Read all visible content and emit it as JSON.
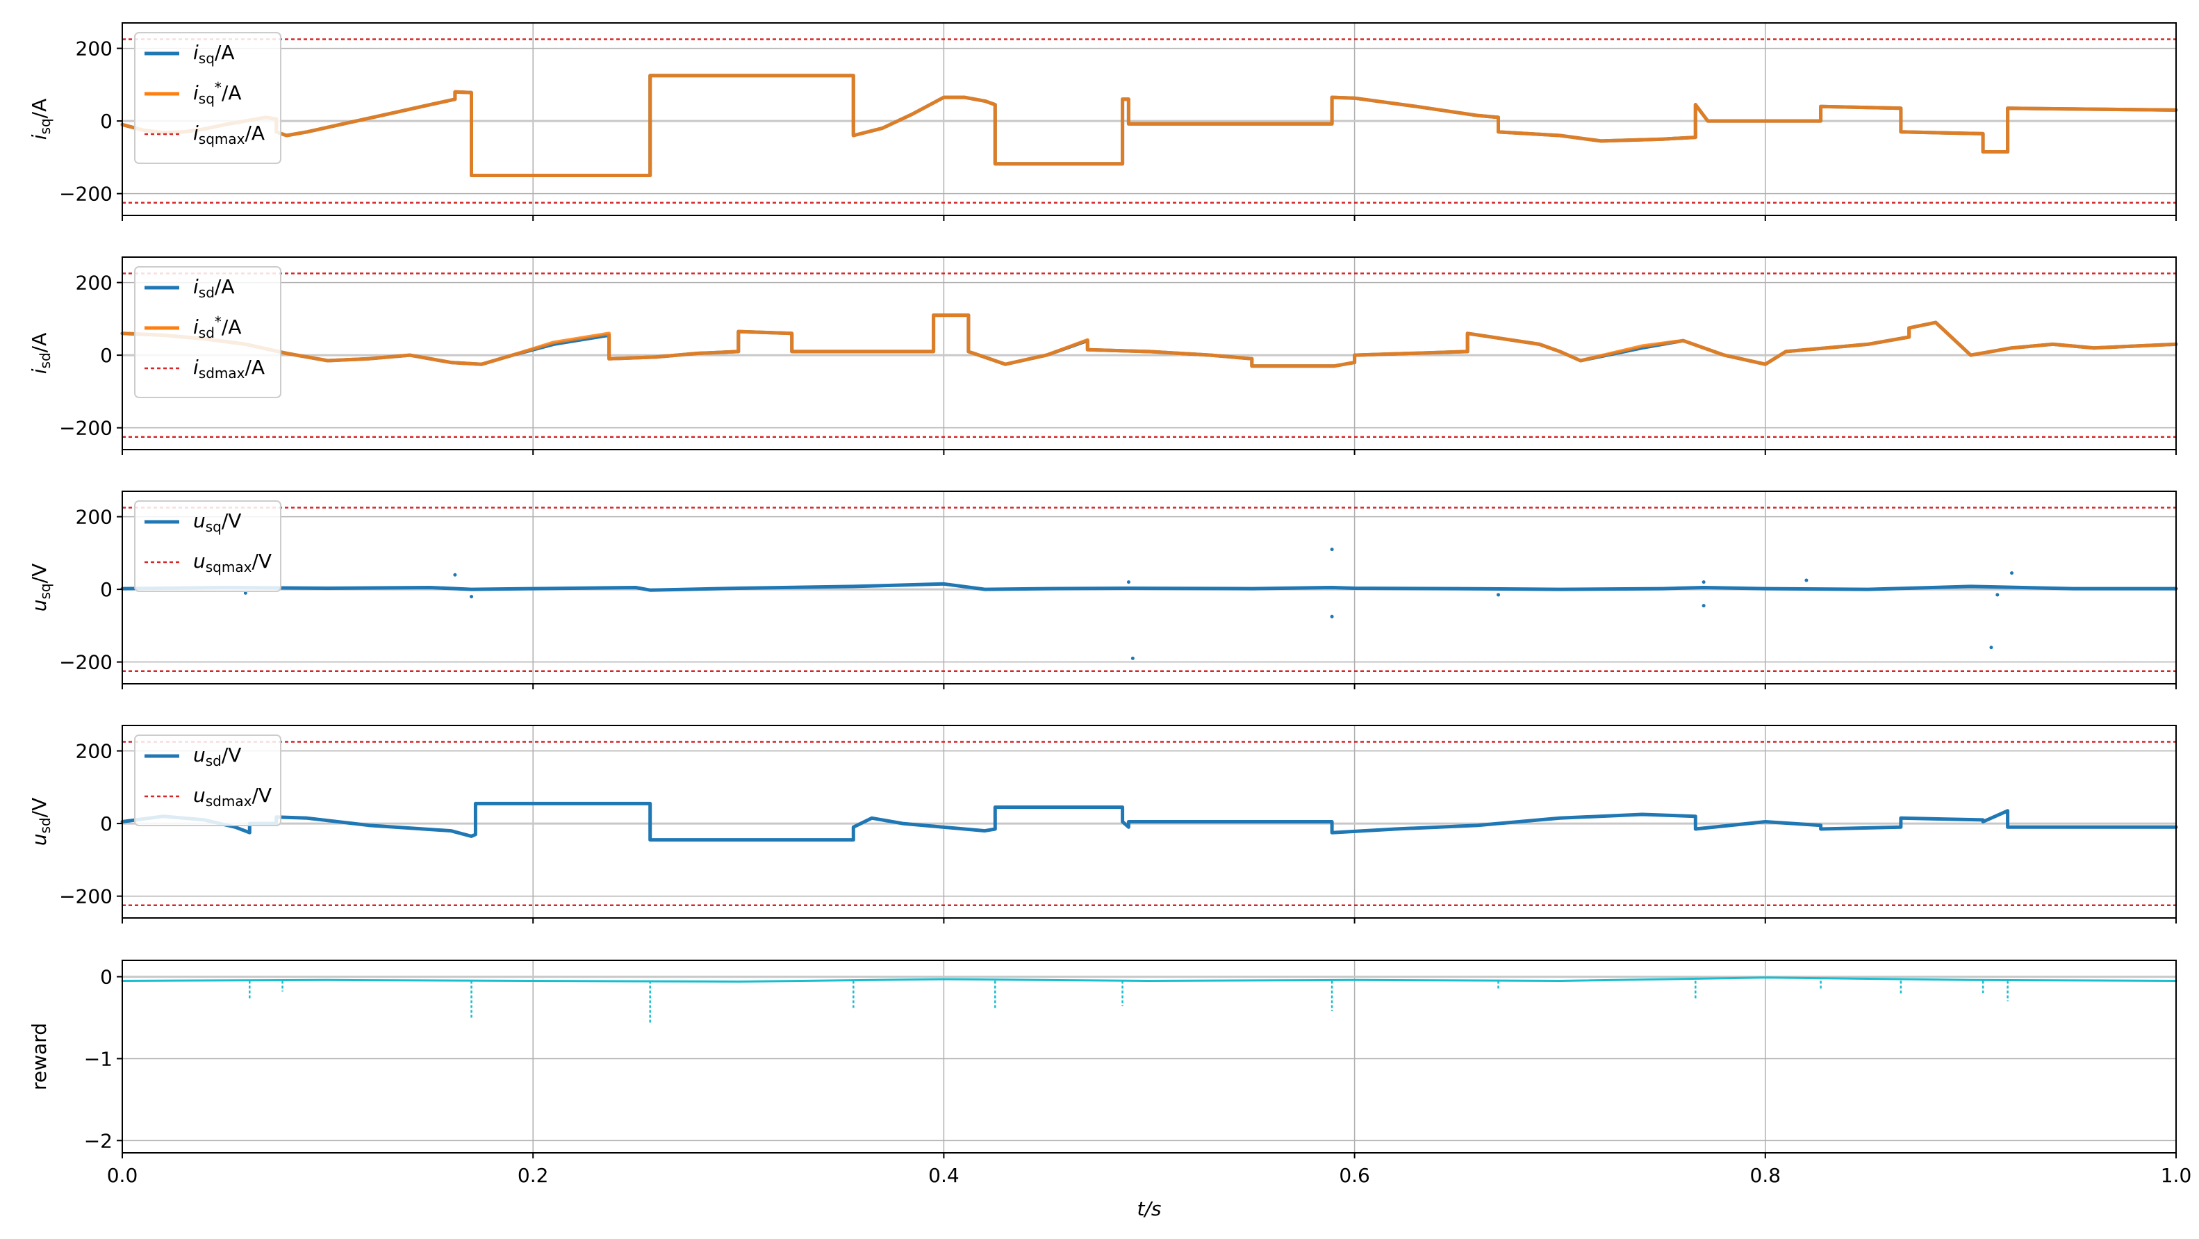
{
  "colors": {
    "series_blue": "#1f77b4",
    "series_orange": "#ff7f0e",
    "limit_red": "#d62728",
    "reward_cyan": "#17becf",
    "grid": "#b0b0b0",
    "zero_line": "#c8c8c8"
  },
  "x_axis": {
    "label": "t/s",
    "range": [
      0,
      1
    ],
    "ticks": [
      0.0,
      0.2,
      0.4,
      0.6,
      0.8,
      1.0
    ],
    "tick_labels": [
      "0.0",
      "0.2",
      "0.4",
      "0.6",
      "0.8",
      "1.0"
    ]
  },
  "chart_data": [
    {
      "type": "line",
      "ylabel_main": "i",
      "ylabel_sub": "sq",
      "ylabel_unit": "/A",
      "ylim": [
        -260,
        270
      ],
      "yticks": [
        200,
        0,
        -200
      ],
      "ytick_labels": [
        "200",
        "0",
        "−200"
      ],
      "grid": true,
      "legend_position": "top-left",
      "legend": [
        {
          "main": "i",
          "sub": "sq",
          "sup": "",
          "unit": "/A",
          "style": "solid",
          "color": "#1f77b4"
        },
        {
          "main": "i",
          "sub": "sq",
          "sup": "*",
          "unit": "/A",
          "style": "solid",
          "color": "#ff7f0e"
        },
        {
          "main": "i",
          "sub": "sqmax",
          "sup": "",
          "unit": "/A",
          "style": "dashed",
          "color": "#d62728"
        }
      ],
      "limits": [
        225,
        -225
      ],
      "series": [
        {
          "name": "isq",
          "color": "#1f77b4",
          "t": [
            0,
            0.01,
            0.02,
            0.03,
            0.04,
            0.05,
            0.06,
            0.07,
            0.075,
            0.075,
            0.08,
            0.09,
            0.11,
            0.13,
            0.15,
            0.162,
            0.162,
            0.17,
            0.17,
            0.257,
            0.257,
            0.356,
            0.356,
            0.37,
            0.385,
            0.4,
            0.41,
            0.42,
            0.425,
            0.425,
            0.487,
            0.487,
            0.49,
            0.49,
            0.589,
            0.589,
            0.6,
            0.63,
            0.66,
            0.67,
            0.67,
            0.7,
            0.72,
            0.75,
            0.766,
            0.766,
            0.772,
            0.772,
            0.827,
            0.827,
            0.866,
            0.866,
            0.906,
            0.906,
            0.918,
            0.918,
            1.0
          ],
          "values": [
            -10,
            -25,
            -32,
            -30,
            -22,
            -10,
            0,
            10,
            5,
            -30,
            -40,
            -30,
            -5,
            20,
            45,
            60,
            80,
            78,
            -150,
            -150,
            125,
            125,
            -40,
            -20,
            20,
            65,
            65,
            55,
            45,
            -118,
            -118,
            60,
            60,
            -8,
            -8,
            65,
            63,
            40,
            15,
            10,
            -30,
            -40,
            -55,
            -50,
            -45,
            45,
            0,
            0,
            0,
            40,
            35,
            -30,
            -35,
            -85,
            -85,
            35,
            30
          ]
        },
        {
          "name": "isq*",
          "color": "#ff7f0e",
          "t": [
            0,
            0.01,
            0.02,
            0.03,
            0.04,
            0.05,
            0.06,
            0.07,
            0.075,
            0.075,
            0.08,
            0.09,
            0.11,
            0.13,
            0.15,
            0.162,
            0.162,
            0.17,
            0.17,
            0.257,
            0.257,
            0.356,
            0.356,
            0.37,
            0.385,
            0.4,
            0.41,
            0.42,
            0.425,
            0.425,
            0.487,
            0.487,
            0.49,
            0.49,
            0.589,
            0.589,
            0.6,
            0.63,
            0.66,
            0.67,
            0.67,
            0.7,
            0.72,
            0.75,
            0.766,
            0.766,
            0.772,
            0.772,
            0.827,
            0.827,
            0.866,
            0.866,
            0.906,
            0.906,
            0.918,
            0.918,
            1.0
          ],
          "values": [
            -10,
            -25,
            -32,
            -30,
            -22,
            -10,
            0,
            10,
            5,
            -30,
            -40,
            -30,
            -5,
            20,
            45,
            60,
            80,
            78,
            -150,
            -150,
            125,
            125,
            -40,
            -20,
            20,
            65,
            65,
            55,
            45,
            -118,
            -118,
            60,
            60,
            -8,
            -8,
            65,
            63,
            40,
            15,
            10,
            -30,
            -40,
            -55,
            -50,
            -45,
            45,
            0,
            0,
            0,
            40,
            35,
            -30,
            -35,
            -85,
            -85,
            35,
            30
          ]
        }
      ]
    },
    {
      "type": "line",
      "ylabel_main": "i",
      "ylabel_sub": "sd",
      "ylabel_unit": "/A",
      "ylim": [
        -260,
        270
      ],
      "yticks": [
        200,
        0,
        -200
      ],
      "ytick_labels": [
        "200",
        "0",
        "−200"
      ],
      "grid": true,
      "legend_position": "top-left",
      "legend": [
        {
          "main": "i",
          "sub": "sd",
          "sup": "",
          "unit": "/A",
          "style": "solid",
          "color": "#1f77b4"
        },
        {
          "main": "i",
          "sub": "sd",
          "sup": "*",
          "unit": "/A",
          "style": "solid",
          "color": "#ff7f0e"
        },
        {
          "main": "i",
          "sub": "sdmax",
          "sup": "",
          "unit": "/A",
          "style": "dashed",
          "color": "#d62728"
        }
      ],
      "limits": [
        225,
        -225
      ],
      "series": [
        {
          "name": "isd",
          "color": "#1f77b4",
          "t": [
            0,
            0.02,
            0.04,
            0.06,
            0.08,
            0.1,
            0.12,
            0.14,
            0.16,
            0.175,
            0.19,
            0.21,
            0.237,
            0.237,
            0.26,
            0.28,
            0.3,
            0.3,
            0.326,
            0.326,
            0.395,
            0.395,
            0.412,
            0.412,
            0.43,
            0.45,
            0.47,
            0.47,
            0.5,
            0.53,
            0.55,
            0.55,
            0.59,
            0.6,
            0.6,
            0.655,
            0.655,
            0.69,
            0.7,
            0.71,
            0.74,
            0.76,
            0.78,
            0.8,
            0.81,
            0.81,
            0.85,
            0.87,
            0.87,
            0.883,
            0.9,
            0.92,
            0.94,
            0.96,
            0.98,
            1.0
          ],
          "values": [
            60,
            55,
            45,
            30,
            5,
            -15,
            -10,
            0,
            -20,
            -25,
            0,
            30,
            55,
            -10,
            -5,
            5,
            10,
            65,
            60,
            10,
            10,
            110,
            110,
            10,
            -25,
            0,
            40,
            15,
            10,
            0,
            -10,
            -30,
            -30,
            -20,
            0,
            10,
            60,
            30,
            10,
            -15,
            20,
            40,
            0,
            -25,
            10,
            10,
            30,
            50,
            75,
            90,
            0,
            20,
            30,
            20,
            25,
            30
          ]
        },
        {
          "name": "isd*",
          "color": "#ff7f0e",
          "t": [
            0,
            0.02,
            0.04,
            0.06,
            0.08,
            0.1,
            0.12,
            0.14,
            0.16,
            0.175,
            0.19,
            0.21,
            0.237,
            0.237,
            0.26,
            0.28,
            0.3,
            0.3,
            0.326,
            0.326,
            0.395,
            0.395,
            0.412,
            0.412,
            0.43,
            0.45,
            0.47,
            0.47,
            0.5,
            0.53,
            0.55,
            0.55,
            0.59,
            0.6,
            0.6,
            0.655,
            0.655,
            0.69,
            0.7,
            0.71,
            0.74,
            0.76,
            0.78,
            0.8,
            0.81,
            0.81,
            0.85,
            0.87,
            0.87,
            0.883,
            0.9,
            0.92,
            0.94,
            0.96,
            0.98,
            1.0
          ],
          "values": [
            60,
            55,
            45,
            30,
            5,
            -15,
            -10,
            0,
            -20,
            -25,
            0,
            35,
            60,
            -10,
            -5,
            5,
            10,
            65,
            60,
            10,
            10,
            110,
            110,
            10,
            -25,
            0,
            42,
            15,
            10,
            0,
            -10,
            -30,
            -30,
            -20,
            0,
            10,
            60,
            30,
            10,
            -15,
            25,
            40,
            0,
            -25,
            10,
            10,
            30,
            50,
            75,
            90,
            0,
            20,
            30,
            20,
            25,
            30
          ]
        }
      ]
    },
    {
      "type": "line",
      "ylabel_main": "u",
      "ylabel_sub": "sq",
      "ylabel_unit": "/V",
      "ylim": [
        -260,
        270
      ],
      "yticks": [
        200,
        0,
        -200
      ],
      "ytick_labels": [
        "200",
        "0",
        "−200"
      ],
      "grid": true,
      "legend_position": "top-left",
      "legend": [
        {
          "main": "u",
          "sub": "sq",
          "sup": "",
          "unit": "/V",
          "style": "solid",
          "color": "#1f77b4"
        },
        {
          "main": "u",
          "sub": "sqmax",
          "sup": "",
          "unit": "/V",
          "style": "dashed",
          "color": "#d62728"
        }
      ],
      "limits": [
        225,
        -225
      ],
      "series": [
        {
          "name": "usq",
          "color": "#1f77b4",
          "t": [
            0,
            0.05,
            0.1,
            0.15,
            0.17,
            0.2,
            0.25,
            0.257,
            0.3,
            0.356,
            0.4,
            0.42,
            0.45,
            0.49,
            0.55,
            0.589,
            0.6,
            0.65,
            0.7,
            0.75,
            0.77,
            0.8,
            0.85,
            0.9,
            0.95,
            1.0
          ],
          "values": [
            2,
            5,
            3,
            5,
            0,
            2,
            5,
            -2,
            3,
            8,
            15,
            0,
            2,
            3,
            2,
            5,
            3,
            2,
            0,
            2,
            5,
            2,
            0,
            8,
            2,
            2
          ]
        }
      ],
      "outliers": {
        "t": [
          0.162,
          0.17,
          0.06,
          0.492,
          0.49,
          0.589,
          0.589,
          0.77,
          0.77,
          0.91,
          0.913,
          0.92,
          0.82,
          0.67
        ],
        "values": [
          40,
          -20,
          -10,
          -190,
          20,
          110,
          -75,
          -45,
          20,
          -160,
          -15,
          45,
          25,
          -15
        ]
      }
    },
    {
      "type": "line",
      "ylabel_main": "u",
      "ylabel_sub": "sd",
      "ylabel_unit": "/V",
      "ylim": [
        -260,
        270
      ],
      "yticks": [
        200,
        0,
        -200
      ],
      "ytick_labels": [
        "200",
        "0",
        "−200"
      ],
      "grid": true,
      "legend_position": "top-left",
      "legend": [
        {
          "main": "u",
          "sub": "sd",
          "sup": "",
          "unit": "/V",
          "style": "solid",
          "color": "#1f77b4"
        },
        {
          "main": "u",
          "sub": "sdmax",
          "sup": "",
          "unit": "/V",
          "style": "dashed",
          "color": "#d62728"
        }
      ],
      "limits": [
        225,
        -225
      ],
      "series": [
        {
          "name": "usd",
          "color": "#1f77b4",
          "t": [
            0,
            0.02,
            0.04,
            0.055,
            0.062,
            0.062,
            0.075,
            0.075,
            0.09,
            0.12,
            0.16,
            0.17,
            0.172,
            0.172,
            0.257,
            0.257,
            0.356,
            0.356,
            0.365,
            0.38,
            0.42,
            0.425,
            0.425,
            0.487,
            0.487,
            0.49,
            0.49,
            0.589,
            0.589,
            0.62,
            0.66,
            0.7,
            0.74,
            0.766,
            0.766,
            0.8,
            0.827,
            0.827,
            0.866,
            0.866,
            0.906,
            0.906,
            0.918,
            0.918,
            1.0
          ],
          "values": [
            5,
            20,
            10,
            -10,
            -25,
            0,
            0,
            18,
            15,
            -5,
            -20,
            -35,
            -30,
            55,
            55,
            -45,
            -45,
            -10,
            15,
            0,
            -20,
            -15,
            45,
            45,
            5,
            -10,
            5,
            5,
            -25,
            -15,
            -5,
            15,
            25,
            20,
            -15,
            5,
            -5,
            -15,
            -10,
            15,
            10,
            5,
            35,
            -10,
            -10
          ]
        }
      ]
    },
    {
      "type": "line",
      "ylabel_main": "reward",
      "ylabel_sub": "",
      "ylabel_unit": "",
      "ylim": [
        -2.15,
        0.2
      ],
      "yticks": [
        0,
        -1,
        -2
      ],
      "ytick_labels": [
        "0",
        "−1",
        "−2"
      ],
      "grid": true,
      "legend_position": "",
      "legend": [],
      "limits": [],
      "series": [
        {
          "name": "reward",
          "color": "#17becf",
          "t": [
            0,
            0.1,
            0.2,
            0.3,
            0.4,
            0.5,
            0.6,
            0.7,
            0.8,
            0.9,
            1.0
          ],
          "values": [
            -0.05,
            -0.04,
            -0.05,
            -0.06,
            -0.03,
            -0.05,
            -0.04,
            -0.05,
            -0.01,
            -0.04,
            -0.05
          ]
        }
      ],
      "spikes": {
        "t": [
          0.062,
          0.078,
          0.17,
          0.257,
          0.356,
          0.425,
          0.487,
          0.589,
          0.67,
          0.766,
          0.827,
          0.866,
          0.906,
          0.918
        ],
        "values": [
          -0.28,
          -0.18,
          -0.5,
          -0.58,
          -0.38,
          -0.4,
          -0.36,
          -0.42,
          -0.15,
          -0.28,
          -0.15,
          -0.22,
          -0.2,
          -0.3
        ]
      }
    }
  ]
}
